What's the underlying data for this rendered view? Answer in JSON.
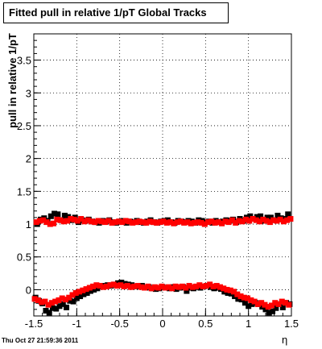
{
  "title": "Fitted pull in relative 1/pT  Global Tracks",
  "timestamp": "Thu Oct 27 21:59:36 2011",
  "chart_data": {
    "type": "scatter",
    "xlabel": "η",
    "ylabel": "pull in relative 1/pT",
    "xlim": [
      -1.5,
      1.5
    ],
    "ylim": [
      -0.4,
      3.9
    ],
    "x_ticks": [
      "-1.5",
      "-1",
      "-0.5",
      "0",
      "0.5",
      "1",
      "1.5"
    ],
    "y_ticks": [
      "0",
      "0.5",
      "1",
      "1.5",
      "2",
      "2.5",
      "3",
      "3.5"
    ],
    "grid": true,
    "series": [
      {
        "color": "#000000",
        "marker": "square",
        "x": [
          -1.46,
          -1.42,
          -1.38,
          -1.34,
          -1.3,
          -1.26,
          -1.22,
          -1.18,
          -1.14,
          -1.1,
          -1.06,
          -1.02,
          -0.98,
          -0.94,
          -0.9,
          -0.86,
          -0.82,
          -0.78,
          -0.74,
          -0.7,
          -0.66,
          -0.62,
          -0.58,
          -0.54,
          -0.5,
          -0.46,
          -0.42,
          -0.38,
          -0.34,
          -0.3,
          -0.26,
          -0.22,
          -0.18,
          -0.14,
          -0.1,
          -0.06,
          -0.02,
          0.02,
          0.06,
          0.1,
          0.14,
          0.18,
          0.22,
          0.26,
          0.3,
          0.34,
          0.38,
          0.42,
          0.46,
          0.5,
          0.54,
          0.58,
          0.62,
          0.66,
          0.7,
          0.74,
          0.78,
          0.82,
          0.86,
          0.9,
          0.94,
          0.98,
          1.02,
          1.06,
          1.1,
          1.14,
          1.18,
          1.22,
          1.26,
          1.3,
          1.34,
          1.38,
          1.42,
          1.46
        ],
        "values": [
          1.0,
          1.07,
          1.09,
          1.05,
          1.12,
          1.16,
          1.15,
          1.06,
          1.13,
          1.11,
          1.06,
          1.1,
          1.03,
          1.06,
          1.05,
          1.07,
          1.04,
          1.03,
          1.02,
          1.05,
          1.04,
          1.06,
          1.03,
          1.02,
          1.04,
          1.05,
          1.02,
          1.04,
          1.03,
          1.05,
          1.03,
          1.02,
          1.04,
          1.06,
          1.03,
          1.02,
          1.04,
          1.05,
          1.06,
          1.03,
          1.02,
          1.05,
          1.04,
          1.03,
          1.05,
          1.04,
          1.02,
          1.06,
          1.05,
          1.03,
          1.04,
          1.02,
          1.05,
          1.03,
          1.04,
          1.06,
          1.05,
          1.07,
          1.03,
          1.08,
          1.05,
          1.1,
          1.12,
          1.08,
          1.11,
          1.12,
          1.05,
          1.1,
          1.1,
          1.06,
          1.13,
          1.09,
          1.08,
          1.15
        ]
      },
      {
        "color": "#ff0000",
        "marker": "square",
        "x": [
          -1.47,
          -1.43,
          -1.39,
          -1.35,
          -1.31,
          -1.27,
          -1.23,
          -1.19,
          -1.15,
          -1.11,
          -1.07,
          -1.03,
          -0.99,
          -0.95,
          -0.91,
          -0.87,
          -0.83,
          -0.79,
          -0.75,
          -0.71,
          -0.67,
          -0.63,
          -0.59,
          -0.55,
          -0.51,
          -0.47,
          -0.43,
          -0.39,
          -0.35,
          -0.31,
          -0.27,
          -0.23,
          -0.19,
          -0.15,
          -0.11,
          -0.07,
          -0.03,
          0.01,
          0.05,
          0.09,
          0.13,
          0.17,
          0.21,
          0.25,
          0.29,
          0.33,
          0.37,
          0.41,
          0.45,
          0.49,
          0.53,
          0.57,
          0.61,
          0.65,
          0.69,
          0.73,
          0.77,
          0.81,
          0.85,
          0.89,
          0.93,
          0.97,
          1.01,
          1.05,
          1.09,
          1.13,
          1.17,
          1.21,
          1.25,
          1.29,
          1.33,
          1.37,
          1.41,
          1.45,
          1.49
        ],
        "values": [
          1.03,
          1.05,
          1.06,
          1.03,
          1.0,
          1.01,
          1.07,
          1.06,
          1.04,
          1.05,
          1.08,
          1.07,
          1.05,
          1.08,
          1.04,
          1.06,
          1.04,
          1.03,
          1.05,
          1.04,
          1.03,
          1.05,
          1.02,
          1.03,
          1.04,
          1.03,
          1.05,
          1.04,
          1.02,
          1.03,
          1.04,
          1.03,
          1.02,
          1.04,
          1.03,
          1.02,
          1.03,
          1.04,
          1.02,
          1.03,
          1.01,
          1.03,
          1.04,
          1.02,
          1.03,
          1.01,
          1.02,
          1.03,
          1.02,
          1.0,
          1.03,
          1.04,
          1.02,
          1.03,
          1.01,
          1.04,
          1.03,
          1.06,
          1.02,
          1.05,
          1.04,
          1.07,
          1.05,
          1.08,
          1.06,
          1.04,
          1.07,
          1.05,
          1.03,
          1.06,
          1.05,
          1.07,
          1.04,
          1.06,
          1.08
        ]
      },
      {
        "color": "#000000",
        "marker": "square",
        "x": [
          -1.48,
          -1.44,
          -1.4,
          -1.36,
          -1.32,
          -1.28,
          -1.24,
          -1.2,
          -1.16,
          -1.12,
          -1.08,
          -1.04,
          -1.0,
          -0.96,
          -0.92,
          -0.88,
          -0.84,
          -0.8,
          -0.76,
          -0.72,
          -0.68,
          -0.64,
          -0.6,
          -0.56,
          -0.52,
          -0.48,
          -0.44,
          -0.4,
          -0.36,
          -0.32,
          -0.28,
          -0.24,
          -0.2,
          -0.16,
          -0.12,
          -0.08,
          -0.04,
          0.0,
          0.04,
          0.08,
          0.12,
          0.16,
          0.2,
          0.24,
          0.28,
          0.32,
          0.36,
          0.4,
          0.44,
          0.48,
          0.52,
          0.56,
          0.6,
          0.64,
          0.68,
          0.72,
          0.76,
          0.8,
          0.84,
          0.88,
          0.92,
          0.96,
          1.0,
          1.04,
          1.08,
          1.12,
          1.16,
          1.2,
          1.24,
          1.28,
          1.32,
          1.36,
          1.4,
          1.44,
          1.48
        ],
        "values": [
          -0.12,
          -0.17,
          -0.21,
          -0.32,
          -0.35,
          -0.28,
          -0.29,
          -0.25,
          -0.22,
          -0.27,
          -0.17,
          -0.18,
          -0.13,
          -0.1,
          -0.07,
          -0.05,
          -0.02,
          0.0,
          0.02,
          0.05,
          0.06,
          0.07,
          0.06,
          0.08,
          0.1,
          0.11,
          0.09,
          0.08,
          0.07,
          0.05,
          0.05,
          0.06,
          0.03,
          0.04,
          0.02,
          0.01,
          0.02,
          0.04,
          0.03,
          0.02,
          0.04,
          0.01,
          0.03,
          0.04,
          -0.02,
          0.03,
          0.02,
          0.04,
          0.03,
          0.05,
          0.06,
          0.04,
          0.02,
          0.03,
          0.01,
          -0.03,
          -0.05,
          -0.06,
          -0.1,
          -0.14,
          -0.15,
          -0.2,
          -0.25,
          -0.22,
          -0.2,
          -0.22,
          -0.26,
          -0.3,
          -0.35,
          -0.33,
          -0.28,
          -0.22,
          -0.27,
          -0.2,
          -0.22
        ]
      },
      {
        "color": "#ff0000",
        "marker": "square",
        "x": [
          -1.49,
          -1.45,
          -1.41,
          -1.37,
          -1.33,
          -1.29,
          -1.25,
          -1.21,
          -1.17,
          -1.13,
          -1.09,
          -1.05,
          -1.01,
          -0.97,
          -0.93,
          -0.89,
          -0.85,
          -0.81,
          -0.77,
          -0.73,
          -0.69,
          -0.65,
          -0.61,
          -0.57,
          -0.53,
          -0.49,
          -0.45,
          -0.41,
          -0.37,
          -0.33,
          -0.29,
          -0.25,
          -0.21,
          -0.17,
          -0.13,
          -0.09,
          -0.05,
          -0.01,
          0.03,
          0.07,
          0.11,
          0.15,
          0.19,
          0.23,
          0.27,
          0.31,
          0.35,
          0.39,
          0.43,
          0.47,
          0.51,
          0.55,
          0.59,
          0.63,
          0.67,
          0.71,
          0.75,
          0.79,
          0.83,
          0.87,
          0.91,
          0.95,
          0.99,
          1.03,
          1.07,
          1.11,
          1.15,
          1.19,
          1.23,
          1.27,
          1.31,
          1.35,
          1.39,
          1.43,
          1.47
        ],
        "values": [
          -0.14,
          -0.16,
          -0.19,
          -0.18,
          -0.23,
          -0.2,
          -0.18,
          -0.16,
          -0.13,
          -0.15,
          -0.12,
          -0.08,
          -0.05,
          -0.03,
          -0.01,
          0.01,
          0.03,
          0.05,
          0.07,
          0.06,
          0.04,
          0.05,
          0.07,
          0.08,
          0.06,
          0.07,
          0.05,
          0.06,
          0.04,
          0.05,
          0.06,
          0.04,
          0.03,
          0.05,
          0.02,
          0.04,
          0.03,
          0.05,
          0.03,
          0.04,
          0.02,
          0.05,
          0.04,
          0.05,
          0.03,
          0.06,
          0.04,
          0.05,
          0.07,
          0.05,
          0.06,
          0.08,
          0.05,
          0.06,
          0.04,
          0.02,
          0.0,
          -0.01,
          -0.03,
          -0.07,
          -0.1,
          -0.12,
          -0.13,
          -0.16,
          -0.18,
          -0.22,
          -0.2,
          -0.23,
          -0.26,
          -0.24,
          -0.2,
          -0.22,
          -0.18,
          -0.2,
          -0.23
        ]
      }
    ]
  }
}
